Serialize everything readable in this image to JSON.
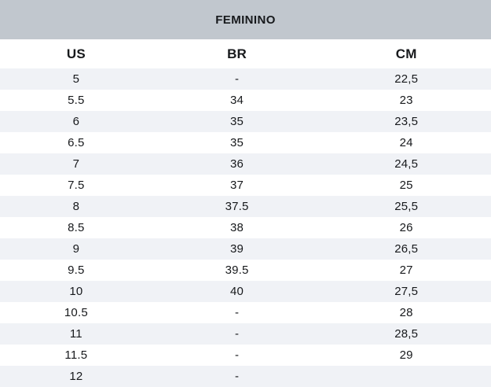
{
  "colors": {
    "title_band_bg": "#c1c7ce",
    "row_alt_bg": "#f0f2f6",
    "row_bg": "#ffffff",
    "text": "#17191c"
  },
  "chart_data": {
    "type": "table",
    "title": "FEMININO",
    "columns": [
      "US",
      "BR",
      "CM"
    ],
    "rows": [
      [
        "5",
        "-",
        "22,5"
      ],
      [
        "5.5",
        "34",
        "23"
      ],
      [
        "6",
        "35",
        "23,5"
      ],
      [
        "6.5",
        "35",
        "24"
      ],
      [
        "7",
        "36",
        "24,5"
      ],
      [
        "7.5",
        "37",
        "25"
      ],
      [
        "8",
        "37.5",
        "25,5"
      ],
      [
        "8.5",
        "38",
        "26"
      ],
      [
        "9",
        "39",
        "26,5"
      ],
      [
        "9.5",
        "39.5",
        "27"
      ],
      [
        "10",
        "40",
        "27,5"
      ],
      [
        "10.5",
        "-",
        "28"
      ],
      [
        "11",
        "-",
        "28,5"
      ],
      [
        "11.5",
        "-",
        "29"
      ],
      [
        "12",
        "-",
        ""
      ]
    ],
    "layout": {
      "stripe_pattern": "odd rows shaded",
      "alignment": "center",
      "grid": "off"
    }
  }
}
